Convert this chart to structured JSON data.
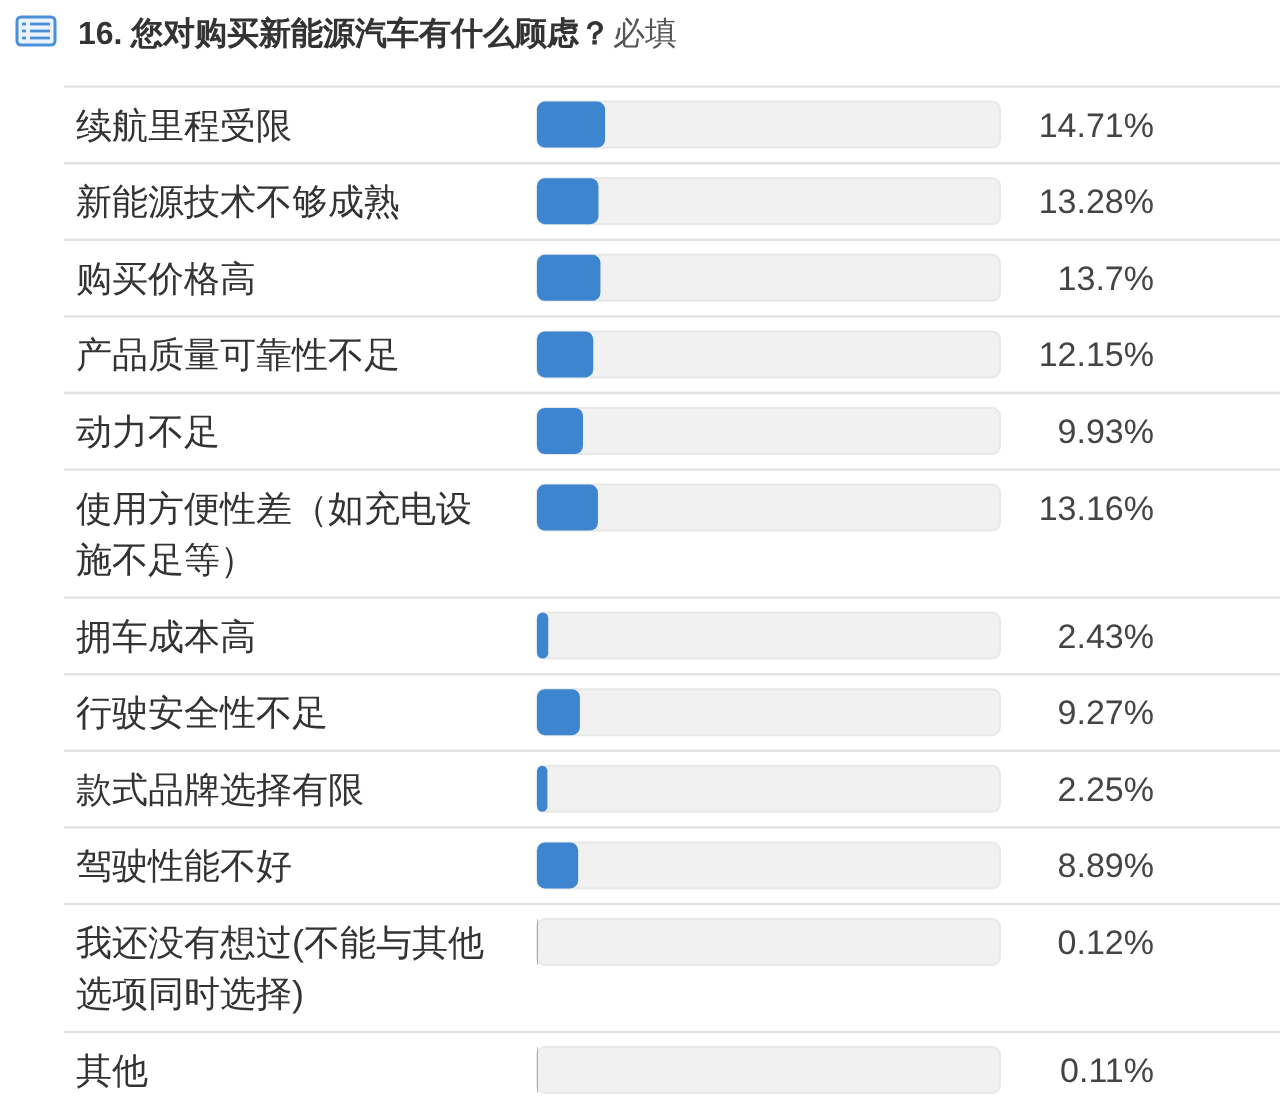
{
  "chart_data": {
    "type": "bar",
    "orientation": "horizontal",
    "title": "16. 您对购买新能源汽车有什么顾虑？",
    "subtitle": "必填",
    "categories": [
      "续航里程受限",
      "新能源技术不够成熟",
      "购买价格高",
      "产品质量可靠性不足",
      "动力不足",
      "使用方便性差（如充电设施不足等）",
      "拥车成本高",
      "行驶安全性不足",
      "款式品牌选择有限",
      "驾驶性能不好",
      "我还没有想过(不能与其他选项同时选择)",
      "其他"
    ],
    "values": [
      14.71,
      13.28,
      13.7,
      12.15,
      9.93,
      13.16,
      2.43,
      9.27,
      2.25,
      8.89,
      0.12,
      0.11
    ],
    "value_labels": [
      "14.71%",
      "13.28%",
      "13.7%",
      "12.15%",
      "9.93%",
      "13.16%",
      "2.43%",
      "9.27%",
      "2.25%",
      "8.89%",
      "0.12%",
      "0.11%"
    ],
    "color": "#3d86cf",
    "xlim": [
      0,
      100
    ],
    "tick_labels": "y"
  }
}
